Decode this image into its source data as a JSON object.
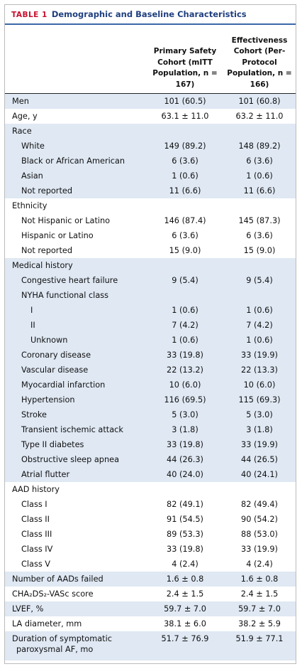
{
  "title": {
    "label": "TABLE 1",
    "text": "Demographic and Baseline Characteristics"
  },
  "table": {
    "columns": [
      "Primary Safety Cohort (mITT Population, n = 167)",
      "Effectiveness Cohort (Per-Protocol Population, n = 166)"
    ],
    "sections": [
      {
        "label": "Men",
        "values": [
          "101 (60.5)",
          "101 (60.8)"
        ]
      },
      {
        "label": "Age, y",
        "values": [
          "63.1 ± 11.0",
          "63.2 ± 11.0"
        ]
      },
      {
        "label": "Race",
        "rows": [
          {
            "label": "White",
            "values": [
              "149 (89.2)",
              "148 (89.2)"
            ]
          },
          {
            "label": "Black or African American",
            "values": [
              "6 (3.6)",
              "6 (3.6)"
            ]
          },
          {
            "label": "Asian",
            "values": [
              "1 (0.6)",
              "1 (0.6)"
            ]
          },
          {
            "label": "Not reported",
            "values": [
              "11 (6.6)",
              "11 (6.6)"
            ]
          }
        ]
      },
      {
        "label": "Ethnicity",
        "rows": [
          {
            "label": "Not Hispanic or Latino",
            "values": [
              "146 (87.4)",
              "145 (87.3)"
            ]
          },
          {
            "label": "Hispanic or Latino",
            "values": [
              "6 (3.6)",
              "6 (3.6)"
            ]
          },
          {
            "label": "Not reported",
            "values": [
              "15 (9.0)",
              "15 (9.0)"
            ]
          }
        ]
      },
      {
        "label": "Medical history",
        "rows": [
          {
            "label": "Congestive heart failure",
            "values": [
              "9 (5.4)",
              "9 (5.4)"
            ]
          },
          {
            "label": "NYHA functional class",
            "rows": [
              {
                "label": "I",
                "values": [
                  "1 (0.6)",
                  "1 (0.6)"
                ]
              },
              {
                "label": "II",
                "values": [
                  "7 (4.2)",
                  "7 (4.2)"
                ]
              },
              {
                "label": "Unknown",
                "values": [
                  "1 (0.6)",
                  "1 (0.6)"
                ]
              }
            ]
          },
          {
            "label": "Coronary disease",
            "values": [
              "33 (19.8)",
              "33 (19.9)"
            ]
          },
          {
            "label": "Vascular disease",
            "values": [
              "22 (13.2)",
              "22 (13.3)"
            ]
          },
          {
            "label": "Myocardial infarction",
            "values": [
              "10 (6.0)",
              "10 (6.0)"
            ]
          },
          {
            "label": "Hypertension",
            "values": [
              "116 (69.5)",
              "115 (69.3)"
            ]
          },
          {
            "label": "Stroke",
            "values": [
              "5 (3.0)",
              "5 (3.0)"
            ]
          },
          {
            "label": "Transient ischemic attack",
            "values": [
              "3 (1.8)",
              "3 (1.8)"
            ]
          },
          {
            "label": "Type II diabetes",
            "values": [
              "33 (19.8)",
              "33 (19.9)"
            ]
          },
          {
            "label": "Obstructive sleep apnea",
            "values": [
              "44 (26.3)",
              "44 (26.5)"
            ]
          },
          {
            "label": "Atrial flutter",
            "values": [
              "40 (24.0)",
              "40 (24.1)"
            ]
          }
        ]
      },
      {
        "label": "AAD history",
        "rows": [
          {
            "label": "Class I",
            "values": [
              "82 (49.1)",
              "82 (49.4)"
            ]
          },
          {
            "label": "Class II",
            "values": [
              "91 (54.5)",
              "90 (54.2)"
            ]
          },
          {
            "label": "Class III",
            "values": [
              "89 (53.3)",
              "88 (53.0)"
            ]
          },
          {
            "label": "Class IV",
            "values": [
              "33 (19.8)",
              "33 (19.9)"
            ]
          },
          {
            "label": "Class V",
            "values": [
              "4 (2.4)",
              "4 (2.4)"
            ]
          }
        ]
      },
      {
        "label": "Number of AADs failed",
        "values": [
          "1.6 ± 0.8",
          "1.6 ± 0.8"
        ]
      },
      {
        "label": "CHA₂DS₂-VASc score",
        "values": [
          "2.4 ± 1.5",
          "2.4 ± 1.5"
        ]
      },
      {
        "label": "LVEF, %",
        "values": [
          "59.7 ± 7.0",
          "59.7 ± 7.0"
        ]
      },
      {
        "label": "LA diameter, mm",
        "values": [
          "38.1 ± 6.0",
          "38.2 ± 5.9"
        ]
      },
      {
        "label": "Duration of symptomatic paroxysmal AF, mo",
        "values": [
          "51.7 ± 76.9",
          "51.9 ± 77.1"
        ]
      }
    ]
  }
}
